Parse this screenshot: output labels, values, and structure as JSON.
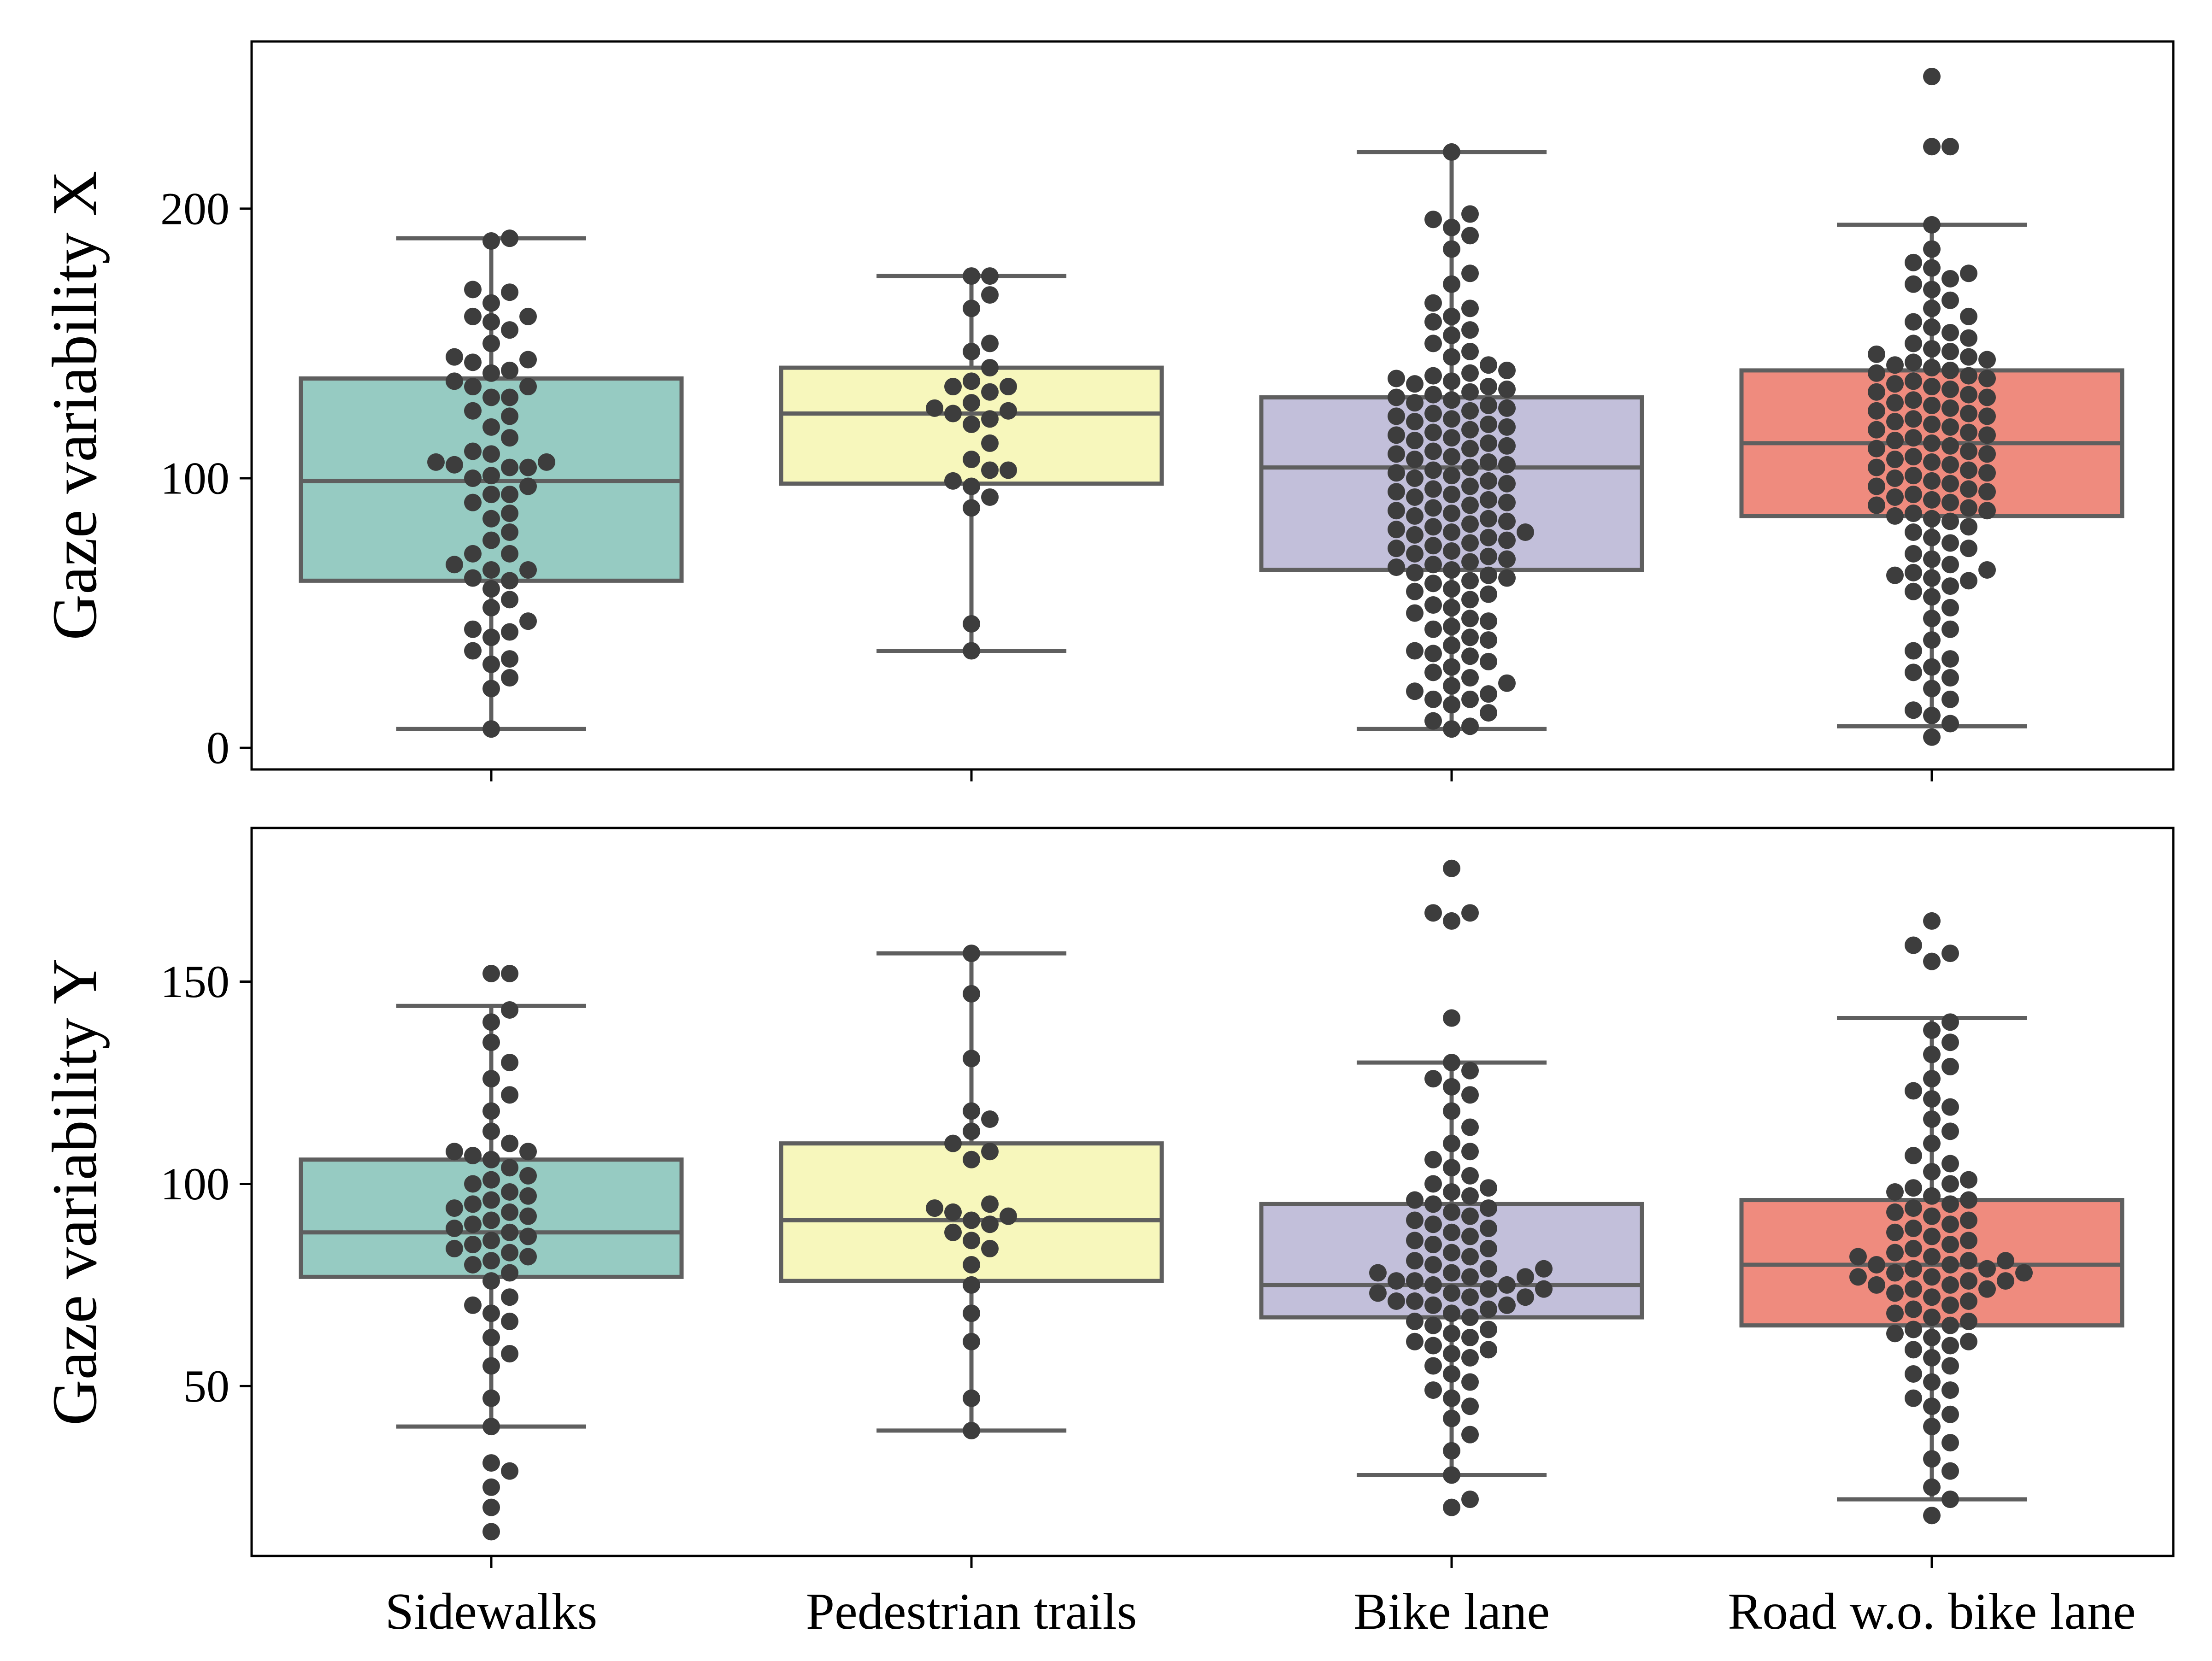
{
  "chart_data": [
    {
      "type": "box",
      "id": "panel-x",
      "ylabel": "Gaze variability X",
      "ylim": [
        -8,
        262
      ],
      "yticks": [
        0,
        100,
        200
      ],
      "categories": [
        "Sidewalks",
        "Pedestrian trails",
        "Bike lane",
        "Road w.o. bike lane"
      ],
      "show_x_tick_labels": false,
      "box_colors": [
        "#96cbc2",
        "#f7f7bc",
        "#c2bfda",
        "#ef8b7e"
      ],
      "boxes": [
        {
          "category": "Sidewalks",
          "whisker_low": 7,
          "q1": 62,
          "median": 99,
          "q3": 137,
          "whisker_high": 189
        },
        {
          "category": "Pedestrian trails",
          "whisker_low": 36,
          "q1": 98,
          "median": 124,
          "q3": 141,
          "whisker_high": 175
        },
        {
          "category": "Bike lane",
          "whisker_low": 7,
          "q1": 66,
          "median": 104,
          "q3": 130,
          "whisker_high": 221
        },
        {
          "category": "Road w.o. bike lane",
          "whisker_low": 8,
          "q1": 86,
          "median": 113,
          "q3": 140,
          "whisker_high": 194
        }
      ],
      "points": [
        [
          7,
          22,
          26,
          31,
          33,
          36,
          41,
          43,
          44,
          47,
          52,
          55,
          59,
          62,
          63,
          66,
          66,
          68,
          72,
          72,
          77,
          80,
          85,
          87,
          91,
          94,
          94,
          97,
          100,
          101,
          104,
          104,
          105,
          106,
          106,
          109,
          110,
          115,
          119,
          123,
          125,
          130,
          130,
          134,
          134,
          136,
          139,
          140,
          143,
          144,
          145,
          150,
          155,
          158,
          160,
          160,
          165,
          169,
          170,
          188,
          189
        ],
        [
          36,
          46,
          89,
          93,
          97,
          99,
          103,
          103,
          107,
          113,
          120,
          122,
          124,
          125,
          126,
          128,
          132,
          134,
          134,
          136,
          141,
          147,
          150,
          163,
          168,
          175,
          175
        ],
        [
          7,
          8,
          10,
          13,
          16,
          18,
          18,
          20,
          21,
          23,
          24,
          26,
          28,
          30,
          32,
          34,
          35,
          36,
          38,
          40,
          41,
          44,
          45,
          47,
          48,
          50,
          52,
          53,
          55,
          57,
          58,
          59,
          61,
          62,
          63,
          64,
          65,
          66,
          67,
          68,
          69,
          70,
          71,
          72,
          73,
          74,
          75,
          76,
          77,
          78,
          79,
          80,
          80,
          81,
          82,
          83,
          84,
          85,
          86,
          87,
          88,
          89,
          90,
          91,
          92,
          93,
          94,
          95,
          96,
          97,
          98,
          99,
          100,
          101,
          102,
          103,
          104,
          105,
          106,
          107,
          108,
          109,
          110,
          111,
          112,
          113,
          114,
          115,
          116,
          117,
          118,
          119,
          120,
          121,
          122,
          123,
          124,
          125,
          126,
          127,
          128,
          129,
          130,
          131,
          132,
          133,
          134,
          135,
          136,
          137,
          138,
          139,
          140,
          142,
          145,
          147,
          150,
          153,
          155,
          158,
          160,
          163,
          165,
          172,
          176,
          185,
          190,
          193,
          196,
          198,
          221
        ],
        [
          4,
          9,
          12,
          14,
          18,
          22,
          26,
          28,
          30,
          33,
          36,
          40,
          44,
          48,
          52,
          56,
          58,
          60,
          62,
          63,
          64,
          65,
          66,
          68,
          70,
          72,
          74,
          76,
          78,
          80,
          82,
          84,
          85,
          86,
          87,
          88,
          89,
          90,
          91,
          92,
          93,
          94,
          95,
          96,
          97,
          98,
          99,
          100,
          101,
          102,
          103,
          104,
          105,
          106,
          107,
          108,
          109,
          110,
          111,
          112,
          113,
          114,
          115,
          116,
          117,
          118,
          119,
          120,
          121,
          122,
          123,
          124,
          125,
          126,
          127,
          128,
          129,
          130,
          131,
          132,
          133,
          134,
          135,
          136,
          137,
          138,
          139,
          140,
          141,
          142,
          143,
          144,
          145,
          146,
          147,
          148,
          150,
          152,
          154,
          156,
          158,
          160,
          163,
          166,
          170,
          172,
          174,
          176,
          178,
          180,
          185,
          194,
          223,
          223,
          249
        ]
      ]
    },
    {
      "type": "box",
      "id": "panel-y",
      "ylabel": "Gaze variability Y",
      "ylim": [
        8,
        188
      ],
      "yticks": [
        50,
        100,
        150
      ],
      "categories": [
        "Sidewalks",
        "Pedestrian trails",
        "Bike lane",
        "Road w.o. bike lane"
      ],
      "show_x_tick_labels": true,
      "box_colors": [
        "#96cbc2",
        "#f7f7bc",
        "#c2bfda",
        "#ef8b7e"
      ],
      "boxes": [
        {
          "category": "Sidewalks",
          "whisker_low": 40,
          "q1": 77,
          "median": 88,
          "q3": 106,
          "whisker_high": 144
        },
        {
          "category": "Pedestrian trails",
          "whisker_low": 39,
          "q1": 76,
          "median": 91,
          "q3": 110,
          "whisker_high": 157
        },
        {
          "category": "Bike lane",
          "whisker_low": 28,
          "q1": 67,
          "median": 75,
          "q3": 95,
          "whisker_high": 130
        },
        {
          "category": "Road w.o. bike lane",
          "whisker_low": 22,
          "q1": 65,
          "median": 80,
          "q3": 96,
          "whisker_high": 141
        }
      ],
      "points": [
        [
          14,
          20,
          25,
          29,
          31,
          40,
          47,
          55,
          58,
          62,
          66,
          68,
          70,
          72,
          76,
          78,
          80,
          81,
          82,
          83,
          84,
          85,
          86,
          87,
          88,
          89,
          90,
          91,
          92,
          93,
          94,
          95,
          96,
          97,
          98,
          100,
          101,
          102,
          104,
          106,
          107,
          108,
          108,
          110,
          113,
          118,
          122,
          126,
          130,
          135,
          140,
          143,
          152,
          152
        ],
        [
          39,
          47,
          61,
          68,
          75,
          80,
          84,
          86,
          88,
          90,
          91,
          92,
          93,
          94,
          95,
          106,
          108,
          110,
          113,
          116,
          118,
          131,
          147,
          157
        ],
        [
          20,
          22,
          28,
          34,
          38,
          42,
          45,
          47,
          49,
          51,
          53,
          55,
          57,
          58,
          59,
          60,
          61,
          62,
          63,
          64,
          65,
          66,
          67,
          68,
          69,
          70,
          70,
          71,
          71,
          72,
          72,
          73,
          73,
          74,
          74,
          75,
          75,
          76,
          76,
          77,
          77,
          78,
          78,
          79,
          79,
          80,
          81,
          82,
          83,
          84,
          85,
          86,
          87,
          88,
          89,
          90,
          91,
          92,
          93,
          94,
          95,
          96,
          97,
          98,
          99,
          100,
          102,
          104,
          106,
          108,
          110,
          114,
          118,
          122,
          124,
          126,
          128,
          130,
          141,
          165,
          167,
          167,
          178
        ],
        [
          18,
          22,
          25,
          29,
          32,
          36,
          40,
          43,
          45,
          47,
          49,
          51,
          53,
          55,
          57,
          59,
          60,
          61,
          62,
          63,
          64,
          65,
          66,
          67,
          68,
          69,
          70,
          71,
          72,
          73,
          74,
          74,
          75,
          75,
          76,
          76,
          77,
          77,
          78,
          78,
          79,
          79,
          80,
          80,
          81,
          81,
          82,
          82,
          83,
          84,
          85,
          86,
          87,
          88,
          89,
          90,
          91,
          92,
          93,
          94,
          95,
          96,
          97,
          98,
          99,
          100,
          101,
          103,
          105,
          107,
          110,
          113,
          116,
          119,
          121,
          123,
          126,
          129,
          132,
          135,
          138,
          140,
          155,
          157,
          159,
          165
        ]
      ]
    }
  ]
}
